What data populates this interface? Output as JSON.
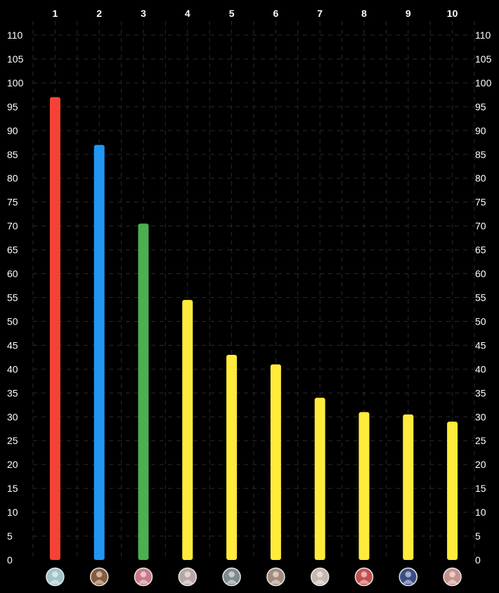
{
  "chart_data": {
    "type": "bar",
    "categories": [
      "1",
      "2",
      "3",
      "4",
      "5",
      "6",
      "7",
      "8",
      "9",
      "10"
    ],
    "values": [
      97,
      87,
      70.5,
      54.5,
      43,
      41,
      34,
      31,
      30.5,
      29
    ],
    "bar_colors": [
      "#f44336",
      "#2196f3",
      "#4caf50",
      "#ffeb3b",
      "#ffeb3b",
      "#ffeb3b",
      "#ffeb3b",
      "#ffeb3b",
      "#ffeb3b",
      "#ffeb3b"
    ],
    "category_axis_position": "top",
    "value_axes": [
      "left",
      "right"
    ],
    "yticks": [
      0,
      5,
      10,
      15,
      20,
      25,
      30,
      35,
      40,
      45,
      50,
      55,
      60,
      65,
      70,
      75,
      80,
      85,
      90,
      95,
      100,
      105,
      110
    ],
    "ylim": [
      0,
      110
    ],
    "grid": true,
    "grid_style": "dashed",
    "background": "#000000",
    "bottom_markers": [
      "avatar-icon",
      "avatar-icon",
      "avatar-icon",
      "avatar-icon",
      "avatar-icon",
      "avatar-icon",
      "avatar-icon",
      "avatar-icon",
      "avatar-icon",
      "avatar-icon"
    ],
    "avatar_colors": [
      "#9fc5c9",
      "#8a5a3c",
      "#c9788a",
      "#b8a7a4",
      "#7f8a8e",
      "#a58b7d",
      "#c6b8b0",
      "#c54f4f",
      "#3a4d86",
      "#c9908c"
    ]
  }
}
